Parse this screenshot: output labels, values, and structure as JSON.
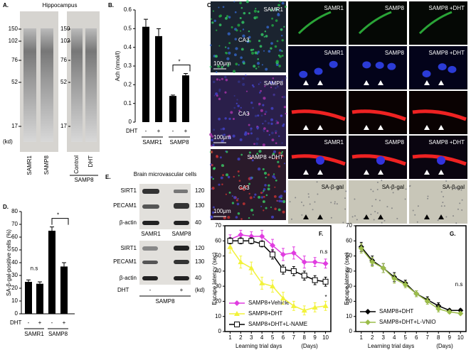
{
  "chart_data": [
    {
      "panel": "B.",
      "type": "bar",
      "ylabel": "Ach (nmol/l)",
      "row_label": "DHT",
      "categories": [
        "-",
        "+",
        "-",
        "+"
      ],
      "groups": [
        "SAMR1",
        "SAMP8"
      ],
      "values": [
        0.51,
        0.46,
        0.14,
        0.25
      ],
      "errors": [
        0.04,
        0.04,
        0.005,
        0.01
      ],
      "color": "#000000",
      "ylim": [
        0,
        0.6
      ],
      "yticks": [
        0,
        0.1,
        0.2,
        0.3,
        0.4,
        0.5,
        0.6
      ],
      "annotations": [
        "*"
      ]
    },
    {
      "panel": "D.",
      "type": "bar",
      "ylabel": "SA-β-gal-positive cells (%)",
      "row_label": "DHT",
      "categories": [
        "-",
        "+",
        "-",
        "+"
      ],
      "groups": [
        "SAMR1",
        "SAMP8"
      ],
      "values": [
        25,
        23.5,
        65,
        37
      ],
      "errors": [
        1.5,
        1.5,
        3,
        3
      ],
      "color": "#000000",
      "ylim": [
        0,
        80
      ],
      "yticks": [
        0,
        10,
        20,
        30,
        40,
        50,
        60,
        70,
        80
      ],
      "annotations": [
        "n.s",
        "*"
      ]
    },
    {
      "panel": "F.",
      "type": "line",
      "ylabel": "Escape latency (sec)",
      "xlabel": "Learning trial days",
      "xunit": "(Days)",
      "x": [
        1,
        2,
        3,
        4,
        5,
        6,
        7,
        8,
        9,
        10
      ],
      "xlim": [
        0.5,
        10.5
      ],
      "xticks": [
        1,
        2,
        3,
        4,
        5,
        6,
        7,
        8,
        9,
        10
      ],
      "ylim": [
        0,
        70
      ],
      "yticks": [
        0,
        10,
        20,
        30,
        40,
        50,
        60,
        70
      ],
      "annotations": [
        "n.s",
        "*"
      ],
      "series": [
        {
          "name": "SAMP8+Vehicle",
          "color": "#e03ce0",
          "marker": "diamond",
          "values": [
            61,
            64,
            63,
            63,
            57,
            51,
            52,
            46,
            46,
            45
          ],
          "errors": [
            3,
            3,
            3,
            4,
            4,
            4,
            4,
            4,
            3,
            3
          ]
        },
        {
          "name": "SAMP8+DHT",
          "color": "#f2f23a",
          "marker": "triangle",
          "values": [
            56,
            46,
            42,
            32,
            30,
            22,
            17,
            14,
            16,
            17
          ],
          "errors": [
            4,
            4,
            4,
            4,
            4,
            4,
            3,
            3,
            3,
            3
          ]
        },
        {
          "name": "SAMP8+DHT+L-NAME",
          "color": "#000000",
          "marker": "square",
          "values": [
            60,
            60,
            60,
            58,
            51,
            41,
            40,
            37,
            34,
            33
          ],
          "errors": [
            2,
            2,
            2,
            2,
            3,
            3,
            3,
            3,
            3,
            3
          ]
        }
      ]
    },
    {
      "panel": "G.",
      "type": "line",
      "ylabel": "Escape latency (sec)",
      "xlabel": "Learning trial days",
      "xunit": "(Days)",
      "x": [
        1,
        2,
        3,
        4,
        5,
        6,
        7,
        8,
        9,
        10
      ],
      "xlim": [
        0.5,
        10.5
      ],
      "xticks": [
        1,
        2,
        3,
        4,
        5,
        6,
        7,
        8,
        9,
        10
      ],
      "ylim": [
        0,
        70
      ],
      "yticks": [
        0,
        10,
        20,
        30,
        40,
        50,
        60,
        70
      ],
      "annotations": [
        "n.s"
      ],
      "series": [
        {
          "name": "SAMP8+DHT",
          "color": "#000000",
          "marker": "diamond",
          "values": [
            56,
            47,
            42,
            36,
            32,
            25,
            21,
            17,
            14,
            14
          ],
          "errors": [
            3,
            3,
            3,
            3,
            2,
            2,
            2,
            2,
            1,
            1
          ]
        },
        {
          "name": "SAMP8+DHT+L-VNIO",
          "color": "#9cbd4a",
          "marker": "diamond",
          "values": [
            55,
            46,
            42,
            35,
            31,
            25,
            20,
            15,
            13,
            12
          ],
          "errors": [
            3,
            3,
            3,
            3,
            2,
            2,
            2,
            2,
            1,
            1
          ]
        }
      ]
    }
  ],
  "panel_a": {
    "panel": "A.",
    "title": "Hippocampus",
    "markers": [
      "150",
      "102",
      "76",
      "52",
      "17"
    ],
    "unit": "(kd)",
    "lanes": [
      "SAMR1",
      "SAMP8",
      "Control",
      "DHT"
    ],
    "group": "SAMP8"
  },
  "panel_c": {
    "panel": "C.",
    "large": [
      {
        "label": "SAMR1",
        "region": "CA3",
        "scale": "100μm"
      },
      {
        "label": "SAMP8",
        "region": "CA3",
        "scale": "100μm"
      },
      {
        "label": "SAMP8 +DHT",
        "region": "CA3",
        "scale": "100μm"
      }
    ],
    "grid_labels": [
      [
        "SAMR1",
        "SAMP8",
        "SAMP8 +DHT"
      ],
      [
        "SAMR1",
        "SAMP8",
        "SAMP8 +DHT"
      ],
      [
        "SAMR1",
        "SAMP8",
        "SAMP8 +DHT"
      ],
      [
        "SA-β-gal",
        "SA-β-gal",
        "SA-β-gal"
      ]
    ]
  },
  "panel_e": {
    "panel": "E.",
    "title": "Brain microvascular cells",
    "bands": [
      "SIRT1",
      "PECAM1",
      "β-actin"
    ],
    "sizes": [
      "120",
      "130",
      "40"
    ],
    "lanes": [
      "SAMR1",
      "SAMP8"
    ],
    "treatment": "DHT",
    "signs": [
      "-",
      "+"
    ],
    "unit": "(kd)",
    "group": "SAMP8"
  }
}
